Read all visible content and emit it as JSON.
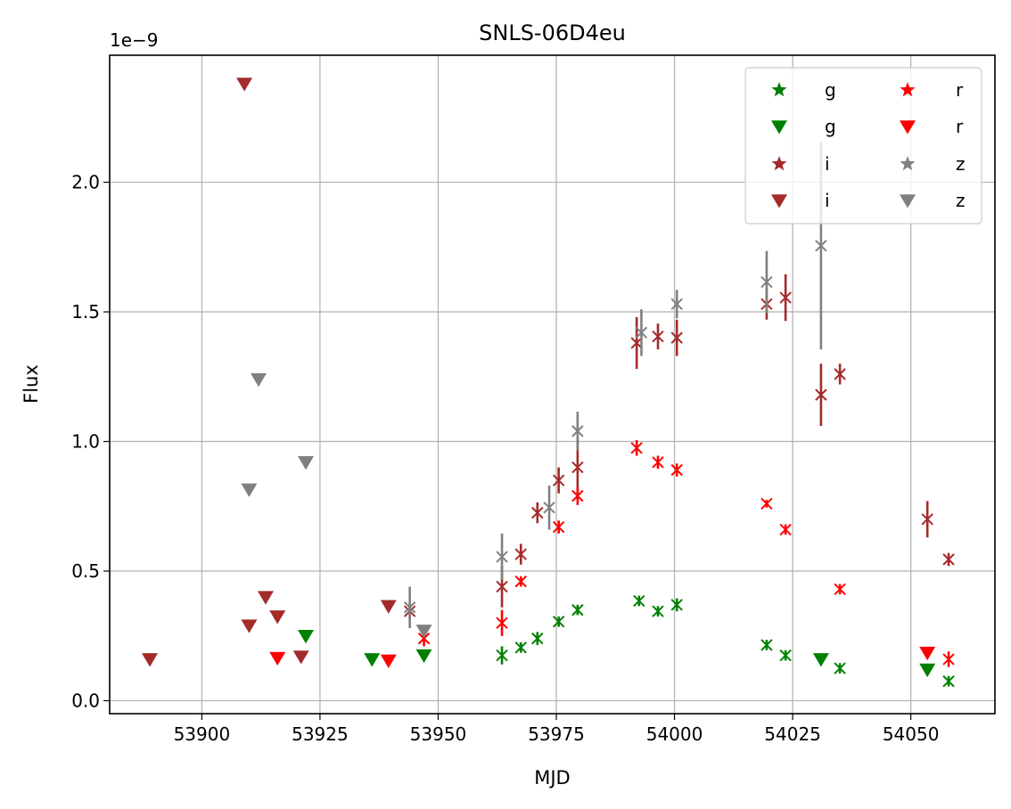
{
  "chart_data": {
    "type": "scatter",
    "title": "SNLS-06D4eu",
    "xlabel": "MJD",
    "ylabel": "Flux",
    "y_offset_label": "1e−9",
    "xlim": [
      53880.5,
      54067.8
    ],
    "ylim": [
      -0.05,
      2.49
    ],
    "x_ticks": [
      53900,
      53925,
      53950,
      53975,
      54000,
      54025,
      54050
    ],
    "y_ticks": [
      0.0,
      0.5,
      1.0,
      1.5,
      2.0
    ],
    "grid": true,
    "legend_position": "top-right",
    "legend_columns": 2,
    "colors": {
      "g": "#008000",
      "r": "#ff0000",
      "i": "#a52a2a",
      "z": "#808080"
    },
    "series": [
      {
        "name": "g",
        "band": "g",
        "kind": "detection",
        "points": [
          {
            "x": 53963.5,
            "y": 0.175,
            "err": 0.035
          },
          {
            "x": 53967.5,
            "y": 0.205,
            "err": 0.02
          },
          {
            "x": 53971.0,
            "y": 0.24,
            "err": 0.025
          },
          {
            "x": 53975.5,
            "y": 0.305,
            "err": 0.02
          },
          {
            "x": 53979.5,
            "y": 0.35,
            "err": 0.02
          },
          {
            "x": 53992.5,
            "y": 0.385,
            "err": 0.02
          },
          {
            "x": 53996.5,
            "y": 0.345,
            "err": 0.02
          },
          {
            "x": 54000.5,
            "y": 0.37,
            "err": 0.025
          },
          {
            "x": 54019.5,
            "y": 0.215,
            "err": 0.02
          },
          {
            "x": 54023.5,
            "y": 0.175,
            "err": 0.02
          },
          {
            "x": 54035.0,
            "y": 0.125,
            "err": 0.02
          },
          {
            "x": 54058.0,
            "y": 0.075,
            "err": 0.02
          }
        ]
      },
      {
        "name": "g",
        "band": "g",
        "kind": "upper_limit",
        "points": [
          {
            "x": 53922.0,
            "y": 0.25
          },
          {
            "x": 53936.0,
            "y": 0.16
          },
          {
            "x": 53947.0,
            "y": 0.175
          },
          {
            "x": 54031.0,
            "y": 0.16
          },
          {
            "x": 54053.5,
            "y": 0.12
          }
        ]
      },
      {
        "name": "i",
        "band": "i",
        "kind": "detection",
        "points": [
          {
            "x": 53944.0,
            "y": 0.345,
            "err": 0.035
          },
          {
            "x": 53963.5,
            "y": 0.44,
            "err": 0.08
          },
          {
            "x": 53967.5,
            "y": 0.565,
            "err": 0.04
          },
          {
            "x": 53971.0,
            "y": 0.725,
            "err": 0.04
          },
          {
            "x": 53975.5,
            "y": 0.85,
            "err": 0.05
          },
          {
            "x": 53979.5,
            "y": 0.9,
            "err": 0.11
          },
          {
            "x": 53992.0,
            "y": 1.38,
            "err": 0.1
          },
          {
            "x": 53996.5,
            "y": 1.405,
            "err": 0.05
          },
          {
            "x": 54000.5,
            "y": 1.4,
            "err": 0.07
          },
          {
            "x": 54019.5,
            "y": 1.53,
            "err": 0.06
          },
          {
            "x": 54023.5,
            "y": 1.555,
            "err": 0.09
          },
          {
            "x": 54031.0,
            "y": 1.18,
            "err": 0.12
          },
          {
            "x": 54035.0,
            "y": 1.26,
            "err": 0.04
          },
          {
            "x": 54053.5,
            "y": 0.7,
            "err": 0.07
          },
          {
            "x": 54058.0,
            "y": 0.545,
            "err": 0.025
          }
        ]
      },
      {
        "name": "i",
        "band": "i",
        "kind": "upper_limit",
        "points": [
          {
            "x": 53889.0,
            "y": 0.16
          },
          {
            "x": 53909.0,
            "y": 2.38
          },
          {
            "x": 53910.0,
            "y": 0.29
          },
          {
            "x": 53913.5,
            "y": 0.4
          },
          {
            "x": 53916.0,
            "y": 0.325
          },
          {
            "x": 53921.0,
            "y": 0.17
          },
          {
            "x": 53939.5,
            "y": 0.365
          }
        ]
      },
      {
        "name": "r",
        "band": "r",
        "kind": "detection",
        "points": [
          {
            "x": 53947.0,
            "y": 0.24,
            "err": 0.03
          },
          {
            "x": 53963.5,
            "y": 0.3,
            "err": 0.05
          },
          {
            "x": 53967.5,
            "y": 0.46,
            "err": 0.02
          },
          {
            "x": 53975.5,
            "y": 0.67,
            "err": 0.025
          },
          {
            "x": 53979.5,
            "y": 0.79,
            "err": 0.035
          },
          {
            "x": 53992.0,
            "y": 0.975,
            "err": 0.03
          },
          {
            "x": 53996.5,
            "y": 0.92,
            "err": 0.025
          },
          {
            "x": 54000.5,
            "y": 0.89,
            "err": 0.025
          },
          {
            "x": 54019.5,
            "y": 0.76,
            "err": 0.015
          },
          {
            "x": 54023.5,
            "y": 0.66,
            "err": 0.02
          },
          {
            "x": 54035.0,
            "y": 0.43,
            "err": 0.02
          },
          {
            "x": 54058.0,
            "y": 0.16,
            "err": 0.03
          }
        ]
      },
      {
        "name": "r",
        "band": "r",
        "kind": "upper_limit",
        "points": [
          {
            "x": 53916.0,
            "y": 0.165
          },
          {
            "x": 53939.5,
            "y": 0.155
          },
          {
            "x": 54053.5,
            "y": 0.185
          }
        ]
      },
      {
        "name": "z",
        "band": "z",
        "kind": "detection",
        "points": [
          {
            "x": 53944.0,
            "y": 0.36,
            "err": 0.08
          },
          {
            "x": 53963.5,
            "y": 0.555,
            "err": 0.09
          },
          {
            "x": 53973.5,
            "y": 0.745,
            "err": 0.085
          },
          {
            "x": 53979.5,
            "y": 1.04,
            "err": 0.075
          },
          {
            "x": 53993.0,
            "y": 1.42,
            "err": 0.09
          },
          {
            "x": 54000.5,
            "y": 1.53,
            "err": 0.055
          },
          {
            "x": 54019.5,
            "y": 1.615,
            "err": 0.12
          },
          {
            "x": 54031.0,
            "y": 1.755,
            "err": 0.4
          }
        ]
      },
      {
        "name": "z",
        "band": "z",
        "kind": "upper_limit",
        "points": [
          {
            "x": 53910.0,
            "y": 0.815
          },
          {
            "x": 53912.0,
            "y": 1.24
          },
          {
            "x": 53922.0,
            "y": 0.92
          },
          {
            "x": 53947.0,
            "y": 0.27
          }
        ]
      }
    ]
  }
}
